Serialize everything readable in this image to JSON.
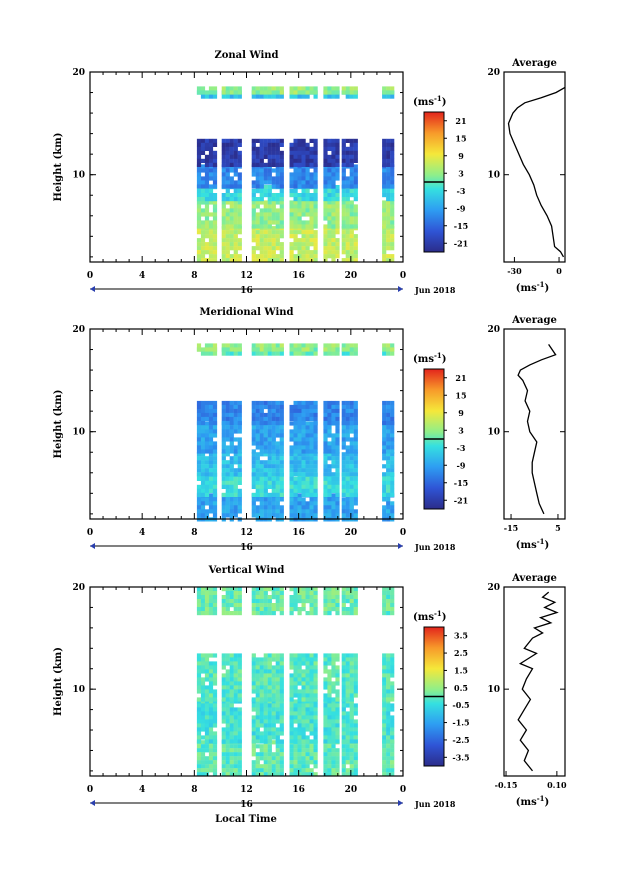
{
  "figure": {
    "x_label": "Local Time",
    "x_ticks": [
      "0",
      "4",
      "8",
      "12",
      "16",
      "20",
      "0"
    ],
    "date_marker": "16",
    "date_label": "Jun 2018",
    "y_label": "Height (km)",
    "y_ticks": [
      "20",
      "10"
    ],
    "unit_label": "(ms",
    "unit_exp": "-1"
  },
  "chart_data": [
    {
      "type": "heatmap",
      "title": "Zonal Wind",
      "ylabel": "Height (km)",
      "xlabel": "",
      "x_range_hours": [
        0,
        24
      ],
      "ylim_km": [
        1.5,
        20
      ],
      "colorbar": {
        "ticks": [
          "21",
          "15",
          "9",
          "3",
          "-3",
          "-9",
          "-15",
          "-21"
        ],
        "range": [
          -24,
          24
        ]
      },
      "data_windows_hours": [
        [
          8.2,
          9.5
        ],
        [
          10.1,
          11.6
        ],
        [
          12.4,
          14.8
        ],
        [
          15.3,
          17.4
        ],
        [
          17.9,
          18.9
        ],
        [
          19.3,
          20.4
        ],
        [
          22.4,
          23.2
        ]
      ],
      "bands": [
        {
          "z0": 1.5,
          "z1": 5,
          "value": 6
        },
        {
          "z0": 5,
          "z1": 7.5,
          "value": 3
        },
        {
          "z0": 7.5,
          "z1": 9,
          "value": -3
        },
        {
          "z0": 9,
          "z1": 11,
          "value": -12
        },
        {
          "z0": 11,
          "z1": 13.5,
          "value": -21
        },
        {
          "z0": 17.5,
          "z1": 18.2,
          "value": -6
        },
        {
          "z0": 18.2,
          "z1": 18.6,
          "value": 3
        }
      ]
    },
    {
      "type": "line",
      "title": "Average",
      "xlabel": "(ms-1)",
      "xlim": [
        -37,
        4
      ],
      "x_ticks": [
        "-30",
        "0"
      ],
      "y_ticks": [
        "20",
        "10"
      ],
      "ylim": [
        1.5,
        20
      ],
      "x": [
        3,
        1,
        -3,
        -4,
        -5,
        -8,
        -12,
        -15,
        -17,
        -20,
        -24,
        -27,
        -30,
        -33,
        -34,
        -31,
        -28,
        -23,
        -12,
        -2,
        4
      ],
      "y": [
        2,
        2.5,
        3,
        4,
        5,
        6,
        7,
        8,
        9,
        10,
        11,
        12,
        13,
        14,
        15,
        16,
        16.5,
        17,
        17.5,
        18,
        18.5
      ]
    },
    {
      "type": "heatmap",
      "title": "Meridional Wind",
      "ylabel": "Height (km)",
      "xlabel": "",
      "x_range_hours": [
        0,
        24
      ],
      "ylim_km": [
        1.5,
        20
      ],
      "colorbar": {
        "ticks": [
          "21",
          "15",
          "9",
          "3",
          "-3",
          "-9",
          "-15",
          "-21"
        ],
        "range": [
          -24,
          24
        ]
      },
      "data_windows_hours": [
        [
          8.2,
          9.5
        ],
        [
          10.1,
          11.6
        ],
        [
          12.4,
          14.8
        ],
        [
          15.3,
          17.4
        ],
        [
          17.9,
          18.9
        ],
        [
          19.3,
          20.4
        ],
        [
          22.4,
          23.2
        ]
      ],
      "bands": [
        {
          "z0": 1.5,
          "z1": 4,
          "value": -9
        },
        {
          "z0": 4,
          "z1": 6,
          "value": -3
        },
        {
          "z0": 6,
          "z1": 8,
          "value": -6
        },
        {
          "z0": 8,
          "z1": 11,
          "value": -9
        },
        {
          "z0": 11,
          "z1": 13,
          "value": -12
        },
        {
          "z0": 17.5,
          "z1": 18.2,
          "value": 0
        },
        {
          "z0": 18.2,
          "z1": 18.6,
          "value": 3
        }
      ]
    },
    {
      "type": "line",
      "title": "Average",
      "xlabel": "(ms-1)",
      "xlim": [
        -18,
        8
      ],
      "x_ticks": [
        "-15",
        "5"
      ],
      "y_ticks": [
        "20",
        "10"
      ],
      "ylim": [
        1.5,
        20
      ],
      "x": [
        -1,
        -3,
        -4,
        -5,
        -6,
        -6,
        -5,
        -4,
        -7,
        -8,
        -7,
        -9,
        -8,
        -10,
        -12,
        -11,
        -7,
        -2,
        4,
        1
      ],
      "y": [
        2,
        3,
        4,
        5,
        6,
        7,
        8,
        9,
        10,
        11,
        12,
        13,
        14,
        15,
        15.5,
        16,
        16.5,
        17,
        17.5,
        18.5
      ]
    },
    {
      "type": "heatmap",
      "title": "Vertical Wind",
      "ylabel": "Height (km)",
      "xlabel": "Local Time",
      "x_range_hours": [
        0,
        24
      ],
      "ylim_km": [
        1.5,
        20
      ],
      "colorbar": {
        "ticks": [
          "3.5",
          "2.5",
          "1.5",
          "0.5",
          "-0.5",
          "-1.5",
          "-2.5",
          "-3.5"
        ],
        "range": [
          -4,
          4
        ]
      },
      "data_windows_hours": [
        [
          8.2,
          9.5
        ],
        [
          10.1,
          11.6
        ],
        [
          12.4,
          14.8
        ],
        [
          15.3,
          17.4
        ],
        [
          17.9,
          18.9
        ],
        [
          19.3,
          20.4
        ],
        [
          22.4,
          23.2
        ]
      ],
      "bands": [
        {
          "z0": 1.5,
          "z1": 5,
          "value": 0
        },
        {
          "z0": 5,
          "z1": 9,
          "value": -0.3
        },
        {
          "z0": 9,
          "z1": 13.5,
          "value": -0.1
        },
        {
          "z0": 17.5,
          "z1": 20,
          "value": 0.1
        }
      ]
    },
    {
      "type": "line",
      "title": "Average",
      "xlabel": "(ms-1)",
      "xlim": [
        -0.16,
        0.14
      ],
      "x_ticks": [
        "-0.15",
        "0.10"
      ],
      "y_ticks": [
        "20",
        "10"
      ],
      "ylim": [
        1.5,
        20
      ],
      "x": [
        -0.02,
        -0.06,
        -0.04,
        -0.08,
        -0.05,
        -0.09,
        -0.06,
        -0.03,
        -0.07,
        -0.05,
        -0.02,
        -0.08,
        -0.04,
        0.0,
        -0.06,
        -0.02,
        0.03,
        -0.01,
        0.07,
        0.02,
        0.1,
        0.04,
        0.09,
        0.03,
        0.06
      ],
      "y": [
        2,
        3,
        4,
        5,
        6,
        7,
        8,
        9,
        10,
        11,
        12,
        12.5,
        13,
        13.5,
        14,
        15,
        15.5,
        16,
        16.5,
        17,
        17.5,
        18,
        18.5,
        19,
        19.5
      ]
    }
  ]
}
